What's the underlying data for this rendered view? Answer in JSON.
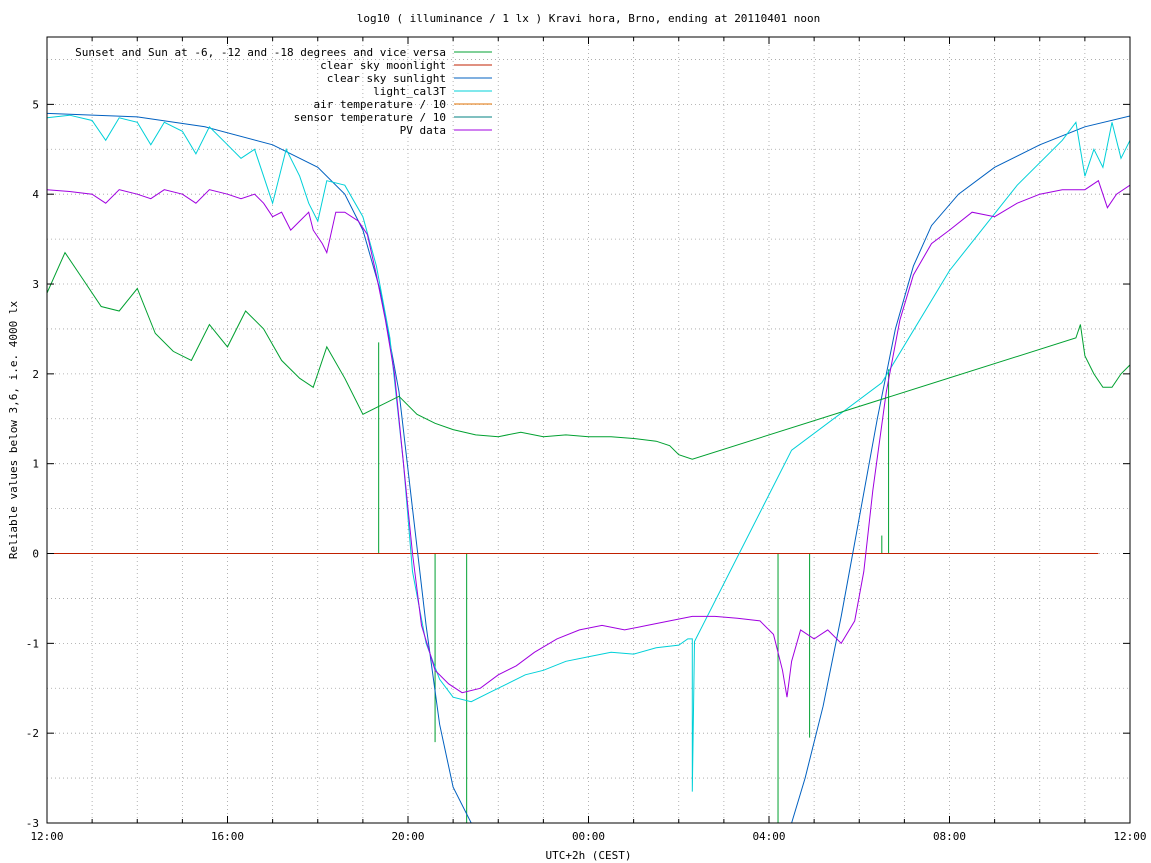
{
  "chart_data": {
    "type": "line",
    "title": "log10 ( illuminance / 1 lx ) Kravi hora, Brno, ending at 20110401 noon",
    "xlabel": "UTC+2h (CEST)",
    "ylabel": "Reliable values below 3,6, i.e. 4000 lx",
    "x_unit": "hours (12:00 = 0, next day 12:00 = 24)",
    "xlim": [
      0,
      24
    ],
    "ylim": [
      -3,
      5.75
    ],
    "x_ticks": [
      {
        "x": 0,
        "label": "12:00"
      },
      {
        "x": 4,
        "label": "16:00"
      },
      {
        "x": 8,
        "label": "20:00"
      },
      {
        "x": 12,
        "label": "00:00"
      },
      {
        "x": 16,
        "label": "04:00"
      },
      {
        "x": 20,
        "label": "08:00"
      },
      {
        "x": 24,
        "label": "12:00"
      }
    ],
    "y_ticks": [
      {
        "y": -3,
        "label": "-3"
      },
      {
        "y": -2,
        "label": "-2"
      },
      {
        "y": -1,
        "label": "-1"
      },
      {
        "y": 0,
        "label": "0"
      },
      {
        "y": 1,
        "label": "1"
      },
      {
        "y": 2,
        "label": "2"
      },
      {
        "y": 3,
        "label": "3"
      },
      {
        "y": 4,
        "label": "4"
      },
      {
        "y": 5,
        "label": "5"
      }
    ],
    "grid": true,
    "grid_x_step": 1,
    "grid_y_step": 0.5,
    "legend_position": "top-left",
    "series": [
      {
        "name": "Sunset and Sun at -6, -12 and -18 degrees and vice versa",
        "color": "#00a030",
        "kind": "impulses",
        "points": [
          [
            7.35,
            2.35
          ],
          [
            7.9,
            0
          ],
          [
            8.6,
            -2.1
          ],
          [
            9.3,
            -3
          ],
          [
            16.2,
            -3
          ],
          [
            16.9,
            -2.05
          ],
          [
            18.5,
            0.2
          ],
          [
            18.65,
            2.05
          ]
        ]
      },
      {
        "name": "clear sky moonlight",
        "color": "#c02000",
        "kind": "line",
        "points": [
          [
            0,
            0
          ],
          [
            23.3,
            0
          ]
        ]
      },
      {
        "name": "clear sky sunlight",
        "color": "#0060c0",
        "kind": "line",
        "points": [
          [
            0,
            4.9
          ],
          [
            2,
            4.86
          ],
          [
            3.5,
            4.75
          ],
          [
            5,
            4.55
          ],
          [
            6,
            4.3
          ],
          [
            6.6,
            4.0
          ],
          [
            7,
            3.6
          ],
          [
            7.4,
            2.9
          ],
          [
            7.8,
            1.8
          ],
          [
            8.1,
            0.5
          ],
          [
            8.4,
            -0.8
          ],
          [
            8.7,
            -1.9
          ],
          [
            9.0,
            -2.6
          ],
          [
            9.4,
            -3.0
          ],
          [
            16.5,
            -3.0
          ],
          [
            16.8,
            -2.5
          ],
          [
            17.2,
            -1.7
          ],
          [
            17.6,
            -0.7
          ],
          [
            18.0,
            0.4
          ],
          [
            18.4,
            1.5
          ],
          [
            18.8,
            2.5
          ],
          [
            19.2,
            3.2
          ],
          [
            19.6,
            3.65
          ],
          [
            20.2,
            4.0
          ],
          [
            21,
            4.3
          ],
          [
            22,
            4.55
          ],
          [
            23,
            4.75
          ],
          [
            24,
            4.87
          ]
        ]
      },
      {
        "name": "light_cal3T",
        "color": "#00d0d8",
        "kind": "line",
        "points": [
          [
            0,
            4.85
          ],
          [
            0.5,
            4.88
          ],
          [
            1,
            4.82
          ],
          [
            1.3,
            4.6
          ],
          [
            1.6,
            4.85
          ],
          [
            2,
            4.8
          ],
          [
            2.3,
            4.55
          ],
          [
            2.6,
            4.8
          ],
          [
            3,
            4.7
          ],
          [
            3.3,
            4.45
          ],
          [
            3.6,
            4.75
          ],
          [
            4,
            4.55
          ],
          [
            4.3,
            4.4
          ],
          [
            4.6,
            4.5
          ],
          [
            4.8,
            4.2
          ],
          [
            5.0,
            3.9
          ],
          [
            5.3,
            4.5
          ],
          [
            5.6,
            4.2
          ],
          [
            5.8,
            3.9
          ],
          [
            6.0,
            3.7
          ],
          [
            6.2,
            4.15
          ],
          [
            6.6,
            4.1
          ],
          [
            7.0,
            3.75
          ],
          [
            7.3,
            3.2
          ],
          [
            7.6,
            2.4
          ],
          [
            7.9,
            1.0
          ],
          [
            8.1,
            -0.2
          ],
          [
            8.4,
            -1.0
          ],
          [
            8.7,
            -1.4
          ],
          [
            9.0,
            -1.6
          ],
          [
            9.4,
            -1.65
          ],
          [
            9.8,
            -1.55
          ],
          [
            10.2,
            -1.45
          ],
          [
            10.6,
            -1.35
          ],
          [
            11,
            -1.3
          ],
          [
            11.5,
            -1.2
          ],
          [
            12,
            -1.15
          ],
          [
            12.5,
            -1.1
          ],
          [
            13,
            -1.12
          ],
          [
            13.5,
            -1.05
          ],
          [
            14,
            -1.02
          ],
          [
            14.2,
            -0.95
          ],
          [
            14.3,
            -0.95
          ],
          [
            14.3,
            -2.65
          ],
          [
            14.35,
            -0.98
          ],
          [
            16.5,
            1.15
          ],
          [
            18.5,
            1.9
          ],
          [
            20,
            3.15
          ],
          [
            21.5,
            4.1
          ],
          [
            22.5,
            4.6
          ],
          [
            22.8,
            4.8
          ],
          [
            23.0,
            4.2
          ],
          [
            23.2,
            4.5
          ],
          [
            23.4,
            4.3
          ],
          [
            23.6,
            4.8
          ],
          [
            23.8,
            4.4
          ],
          [
            24,
            4.6
          ]
        ]
      },
      {
        "name": "air temperature / 10",
        "color": "#e07000",
        "kind": "line",
        "points": []
      },
      {
        "name": "sensor temperature / 10",
        "color": "#008080",
        "kind": "line",
        "points": []
      },
      {
        "name": "PV data",
        "color": "#a000e0",
        "kind": "line",
        "points": [
          [
            0,
            4.05
          ],
          [
            0.5,
            4.03
          ],
          [
            1,
            4.0
          ],
          [
            1.3,
            3.9
          ],
          [
            1.6,
            4.05
          ],
          [
            2,
            4.0
          ],
          [
            2.3,
            3.95
          ],
          [
            2.6,
            4.05
          ],
          [
            3,
            4.0
          ],
          [
            3.3,
            3.9
          ],
          [
            3.6,
            4.05
          ],
          [
            4,
            4.0
          ],
          [
            4.3,
            3.95
          ],
          [
            4.6,
            4.0
          ],
          [
            4.8,
            3.9
          ],
          [
            5.0,
            3.75
          ],
          [
            5.2,
            3.8
          ],
          [
            5.4,
            3.6
          ],
          [
            5.6,
            3.7
          ],
          [
            5.8,
            3.8
          ],
          [
            5.9,
            3.6
          ],
          [
            6.1,
            3.45
          ],
          [
            6.2,
            3.35
          ],
          [
            6.4,
            3.8
          ],
          [
            6.6,
            3.8
          ],
          [
            6.9,
            3.7
          ],
          [
            7.1,
            3.55
          ],
          [
            7.3,
            3.1
          ],
          [
            7.5,
            2.6
          ],
          [
            7.7,
            2.0
          ],
          [
            7.9,
            1.0
          ],
          [
            8.1,
            0.0
          ],
          [
            8.3,
            -0.8
          ],
          [
            8.6,
            -1.3
          ],
          [
            8.9,
            -1.45
          ],
          [
            9.2,
            -1.55
          ],
          [
            9.6,
            -1.5
          ],
          [
            10,
            -1.35
          ],
          [
            10.4,
            -1.25
          ],
          [
            10.8,
            -1.1
          ],
          [
            11.3,
            -0.95
          ],
          [
            11.8,
            -0.85
          ],
          [
            12.3,
            -0.8
          ],
          [
            12.8,
            -0.85
          ],
          [
            13.3,
            -0.8
          ],
          [
            13.8,
            -0.75
          ],
          [
            14.3,
            -0.7
          ],
          [
            14.8,
            -0.7
          ],
          [
            15.3,
            -0.72
          ],
          [
            15.8,
            -0.75
          ],
          [
            16.1,
            -0.9
          ],
          [
            16.3,
            -1.3
          ],
          [
            16.4,
            -1.6
          ],
          [
            16.5,
            -1.2
          ],
          [
            16.7,
            -0.85
          ],
          [
            17.0,
            -0.95
          ],
          [
            17.3,
            -0.85
          ],
          [
            17.6,
            -1.0
          ],
          [
            17.9,
            -0.75
          ],
          [
            18.1,
            -0.2
          ],
          [
            18.3,
            0.7
          ],
          [
            18.6,
            1.8
          ],
          [
            18.9,
            2.6
          ],
          [
            19.2,
            3.1
          ],
          [
            19.6,
            3.45
          ],
          [
            20.0,
            3.6
          ],
          [
            20.5,
            3.8
          ],
          [
            21.0,
            3.75
          ],
          [
            21.5,
            3.9
          ],
          [
            22,
            4.0
          ],
          [
            22.5,
            4.05
          ],
          [
            23,
            4.05
          ],
          [
            23.3,
            4.15
          ],
          [
            23.5,
            3.85
          ],
          [
            23.7,
            4.0
          ],
          [
            24,
            4.1
          ]
        ]
      },
      {
        "name": "",
        "color": "#00a030",
        "kind": "line",
        "points": [
          [
            0,
            2.9
          ],
          [
            0.4,
            3.35
          ],
          [
            0.8,
            3.05
          ],
          [
            1.2,
            2.75
          ],
          [
            1.6,
            2.7
          ],
          [
            2.0,
            2.95
          ],
          [
            2.4,
            2.45
          ],
          [
            2.8,
            2.25
          ],
          [
            3.2,
            2.15
          ],
          [
            3.6,
            2.55
          ],
          [
            4.0,
            2.3
          ],
          [
            4.4,
            2.7
          ],
          [
            4.8,
            2.5
          ],
          [
            5.2,
            2.15
          ],
          [
            5.6,
            1.95
          ],
          [
            5.9,
            1.85
          ],
          [
            6.2,
            2.3
          ],
          [
            6.6,
            1.95
          ],
          [
            7.0,
            1.55
          ],
          [
            7.4,
            1.65
          ],
          [
            7.8,
            1.75
          ],
          [
            8.2,
            1.55
          ],
          [
            8.6,
            1.45
          ],
          [
            9.0,
            1.38
          ],
          [
            9.5,
            1.32
          ],
          [
            10,
            1.3
          ],
          [
            10.5,
            1.35
          ],
          [
            11,
            1.3
          ],
          [
            11.5,
            1.32
          ],
          [
            12,
            1.3
          ],
          [
            12.5,
            1.3
          ],
          [
            13,
            1.28
          ],
          [
            13.5,
            1.25
          ],
          [
            13.8,
            1.2
          ],
          [
            14.0,
            1.1
          ],
          [
            14.3,
            1.05
          ],
          [
            22.8,
            2.4
          ],
          [
            22.9,
            2.55
          ],
          [
            23.0,
            2.2
          ],
          [
            23.2,
            2.0
          ],
          [
            23.4,
            1.85
          ],
          [
            23.6,
            1.85
          ],
          [
            23.8,
            2.0
          ],
          [
            24,
            2.1
          ]
        ]
      }
    ]
  }
}
